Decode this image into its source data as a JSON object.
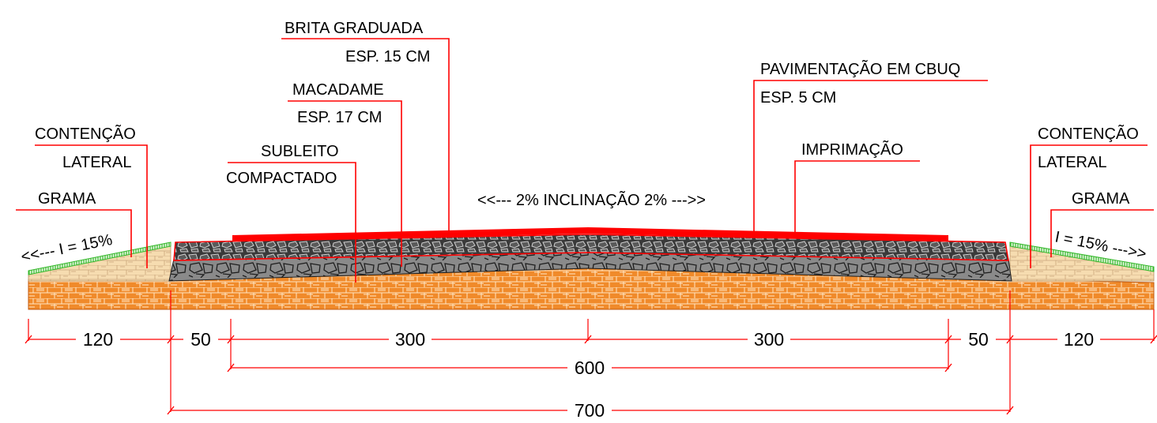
{
  "labels": {
    "brita_title": "BRITA GRADUADA",
    "brita_sub": "ESP. 15 CM",
    "macadame_title": "MACADAME",
    "macadame_sub": "ESP. 17 CM",
    "subleito_title": "SUBLEITO",
    "subleito_sub": "COMPACTADO",
    "contencao_left_title": "CONTENÇÃO",
    "contencao_left_sub": "LATERAL",
    "grama_left": "GRAMA",
    "pavimentacao_title": "PAVIMENTAÇÃO EM CBUQ",
    "pavimentacao_sub": "ESP. 5 CM",
    "imprimacao": "IMPRIMAÇÃO",
    "contencao_right_title": "CONTENÇÃO",
    "contencao_right_sub": "LATERAL",
    "grama_right": "GRAMA",
    "inclinacao": "<<--- 2% INCLINAÇÃO 2% --->>",
    "slope_left": "<<--- I = 15%",
    "slope_right": "I = 15% --->>"
  },
  "dimensions": {
    "d_120_left": "120",
    "d_50_left": "50",
    "d_300_left": "300",
    "d_300_right": "300",
    "d_50_right": "50",
    "d_120_right": "120",
    "d_600": "600",
    "d_700": "700"
  },
  "colors": {
    "leader": "#ff0000",
    "asphalt": "#ff0000",
    "base_dark": "#3a3a3a",
    "base_gray": "#8a8a8a",
    "subgrade": "#f08a2a",
    "fill_sand": "#f6dcb0",
    "grass": "#35b82c"
  }
}
